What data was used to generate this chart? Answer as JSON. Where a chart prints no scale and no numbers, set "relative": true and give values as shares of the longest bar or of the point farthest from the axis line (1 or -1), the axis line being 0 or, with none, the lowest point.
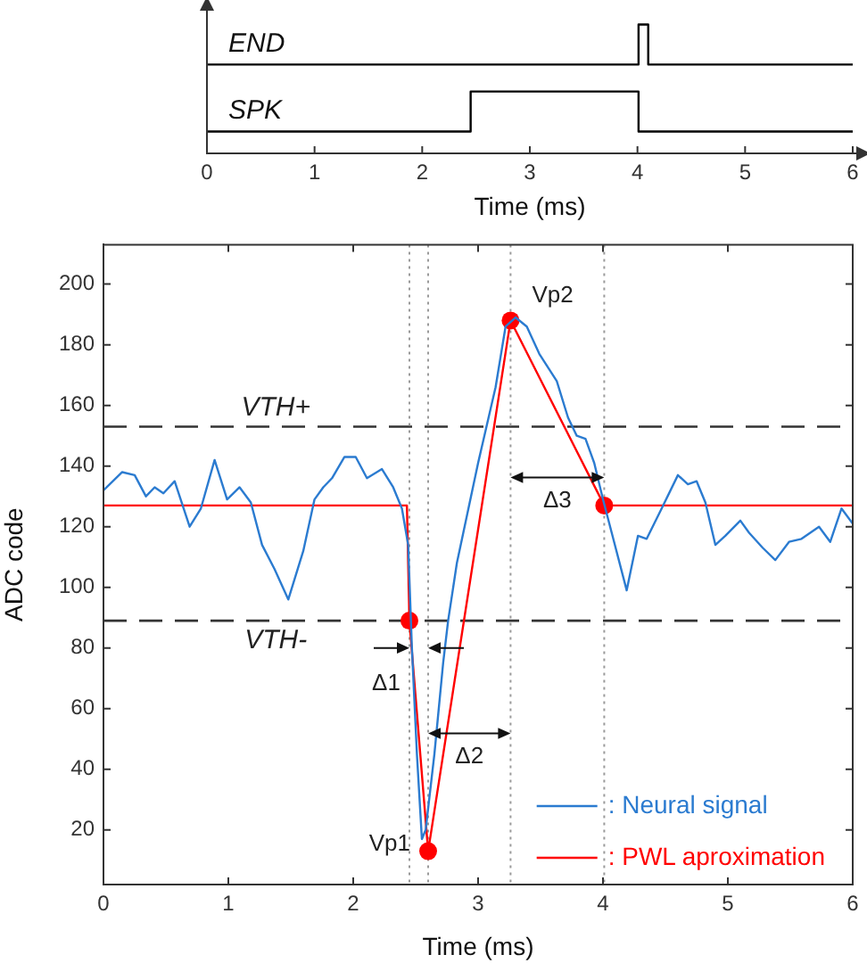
{
  "chart_data": [
    {
      "type": "step",
      "relative": true,
      "xlim": [
        0,
        6
      ],
      "xticks": [
        0,
        1,
        2,
        3,
        4,
        5,
        6
      ],
      "xlabel": "Time (ms)",
      "series": [
        {
          "name": "END",
          "color": "#000000",
          "x": [
            0,
            4.01,
            4.1,
            6
          ],
          "values": [
            0.69,
            1,
            0.69,
            0.69
          ]
        },
        {
          "name": "SPK",
          "color": "#000000",
          "x": [
            0,
            2.45,
            4.01,
            6
          ],
          "values": [
            0.17,
            0.48,
            0.17,
            0.17
          ]
        }
      ]
    },
    {
      "type": "line",
      "xlim": [
        0,
        6
      ],
      "xticks": [
        0,
        1,
        2,
        3,
        4,
        5,
        6
      ],
      "ylim": [
        2,
        213
      ],
      "yticks": [
        20,
        40,
        60,
        80,
        100,
        120,
        140,
        160,
        180,
        200
      ],
      "xlabel": "Time (ms)",
      "ylabel": "ADC code",
      "legend": "bottom right",
      "series": [
        {
          "name": ": Neural signal",
          "color": "#2b7bd0",
          "x": [
            0,
            0.15,
            0.25,
            0.34,
            0.41,
            0.48,
            0.57,
            0.69,
            0.78,
            0.89,
            0.99,
            1.09,
            1.18,
            1.27,
            1.37,
            1.48,
            1.6,
            1.69,
            1.76,
            1.83,
            1.93,
            2.02,
            2.11,
            2.23,
            2.32,
            2.39,
            2.44,
            2.47,
            2.51,
            2.55,
            2.58,
            2.65,
            2.72,
            2.76,
            2.83,
            3.0,
            3.14,
            3.22,
            3.3,
            3.39,
            3.49,
            3.63,
            3.72,
            3.79,
            3.86,
            3.93,
            4.0,
            4.07,
            4.19,
            4.28,
            4.35,
            4.47,
            4.6,
            4.68,
            4.75,
            4.82,
            4.9,
            4.98,
            5.1,
            5.17,
            5.28,
            5.38,
            5.49,
            5.59,
            5.73,
            5.82,
            5.91,
            6.0
          ],
          "values": [
            132,
            138,
            137,
            130,
            133,
            131,
            135,
            120,
            126,
            142,
            129,
            133,
            128,
            114,
            106,
            96,
            112,
            129,
            133,
            136,
            143,
            143,
            136,
            139,
            133,
            126,
            114,
            80,
            45,
            17,
            20,
            45,
            75,
            89,
            108,
            141,
            166,
            186,
            189,
            186,
            177,
            168,
            156,
            150,
            149,
            141,
            129,
            118,
            99,
            117,
            116,
            126,
            137,
            134,
            135,
            128,
            114,
            117,
            122,
            118,
            113,
            109,
            115,
            116,
            120,
            115,
            126,
            121
          ]
        },
        {
          "name": ": PWL aproximation",
          "color": "#ff0000",
          "x": [
            0,
            2.43,
            2.45,
            2.6,
            3.26,
            4.01,
            6
          ],
          "values": [
            127,
            127,
            89,
            13,
            188,
            127,
            127
          ]
        },
        {
          "type": "scatter",
          "marker": "circle",
          "color": "#ff0000",
          "x": [
            2.45,
            2.6,
            3.26,
            4.01
          ],
          "values": [
            89,
            13,
            188,
            127
          ]
        }
      ],
      "ref_lines": [
        {
          "axis": "y",
          "value": 153,
          "label": "VTH+",
          "color": "#333333",
          "line_style": "dashed"
        },
        {
          "axis": "y",
          "value": 89,
          "label": "VTH-",
          "color": "#333333",
          "line_style": "dashed"
        },
        {
          "axis": "x",
          "value": 2.45,
          "color": "#9a9a9a",
          "line_style": "dotted"
        },
        {
          "axis": "x",
          "value": 2.6,
          "color": "#9a9a9a",
          "line_style": "dotted"
        },
        {
          "axis": "x",
          "value": 3.26,
          "color": "#9a9a9a",
          "line_style": "dotted"
        },
        {
          "axis": "x",
          "value": 4.01,
          "color": "#9a9a9a",
          "line_style": "dotted"
        }
      ],
      "annotations": [
        {
          "text": "Vp1",
          "x": 2.6,
          "y": 13
        },
        {
          "text": "Vp2",
          "x": 3.26,
          "y": 188
        },
        "Δ1",
        "Δ2",
        "Δ3"
      ]
    }
  ]
}
